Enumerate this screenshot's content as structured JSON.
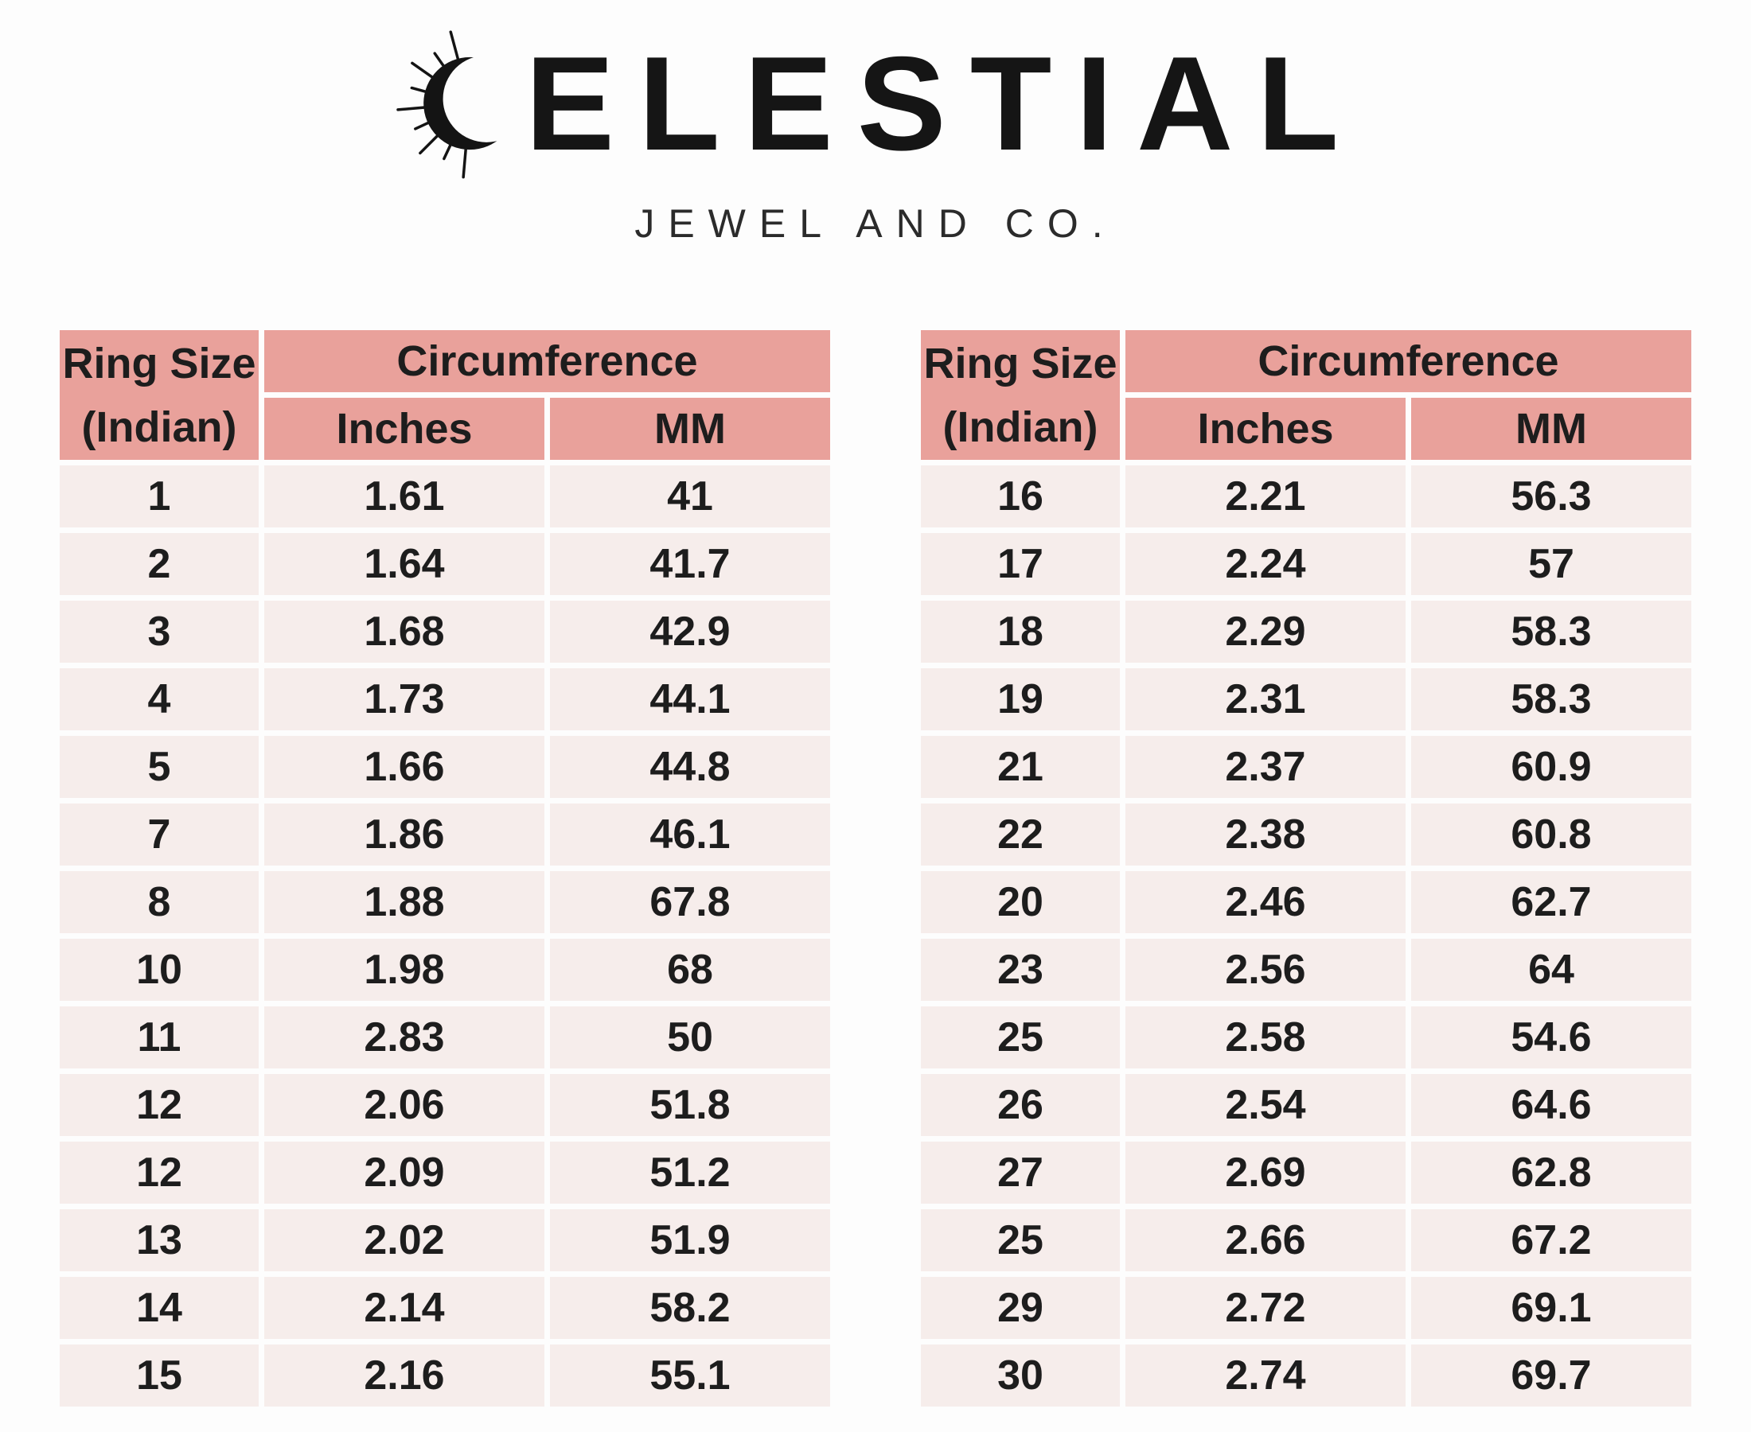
{
  "brand": {
    "wordmark": "ELESTIAL",
    "tagline": "JEWEL AND CO."
  },
  "colors": {
    "header_bg": "#e9a19b",
    "row_bg": "#f6edeb",
    "text": "#1d1d1d"
  },
  "chart_data": [
    {
      "type": "table",
      "header": {
        "ring_size_line1": "Ring Size",
        "ring_size_line2": "(Indian)",
        "circumference": "Circumference",
        "inches": "Inches",
        "mm": "MM"
      },
      "rows": [
        [
          "1",
          "1.61",
          "41"
        ],
        [
          "2",
          "1.64",
          "41.7"
        ],
        [
          "3",
          "1.68",
          "42.9"
        ],
        [
          "4",
          "1.73",
          "44.1"
        ],
        [
          "5",
          "1.66",
          "44.8"
        ],
        [
          "7",
          "1.86",
          "46.1"
        ],
        [
          "8",
          "1.88",
          "67.8"
        ],
        [
          "10",
          "1.98",
          "68"
        ],
        [
          "11",
          "2.83",
          "50"
        ],
        [
          "12",
          "2.06",
          "51.8"
        ],
        [
          "12",
          "2.09",
          "51.2"
        ],
        [
          "13",
          "2.02",
          "51.9"
        ],
        [
          "14",
          "2.14",
          "58.2"
        ],
        [
          "15",
          "2.16",
          "55.1"
        ]
      ]
    },
    {
      "type": "table",
      "header": {
        "ring_size_line1": "Ring Size",
        "ring_size_line2": "(Indian)",
        "circumference": "Circumference",
        "inches": "Inches",
        "mm": "MM"
      },
      "rows": [
        [
          "16",
          "2.21",
          "56.3"
        ],
        [
          "17",
          "2.24",
          "57"
        ],
        [
          "18",
          "2.29",
          "58.3"
        ],
        [
          "19",
          "2.31",
          "58.3"
        ],
        [
          "21",
          "2.37",
          "60.9"
        ],
        [
          "22",
          "2.38",
          "60.8"
        ],
        [
          "20",
          "2.46",
          "62.7"
        ],
        [
          "23",
          "2.56",
          "64"
        ],
        [
          "25",
          "2.58",
          "54.6"
        ],
        [
          "26",
          "2.54",
          "64.6"
        ],
        [
          "27",
          "2.69",
          "62.8"
        ],
        [
          "25",
          "2.66",
          "67.2"
        ],
        [
          "29",
          "2.72",
          "69.1"
        ],
        [
          "30",
          "2.74",
          "69.7"
        ]
      ]
    }
  ]
}
